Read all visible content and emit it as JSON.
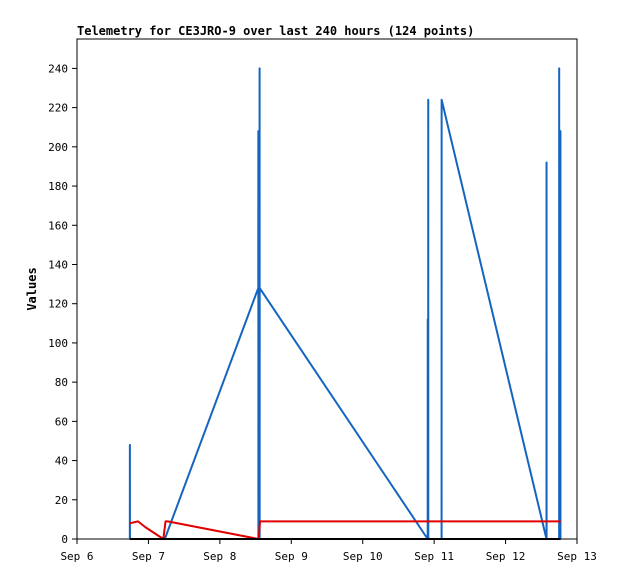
{
  "chart_data": {
    "type": "line",
    "title": "Telemetry for CE3JRO-9 over last 240 hours (124 points)",
    "xlabel": "",
    "ylabel": "Values",
    "ylim": [
      0,
      255
    ],
    "xlim": [
      "2023-09-06T00:00",
      "2023-09-13T00:00"
    ],
    "yticks": [
      0,
      20,
      40,
      60,
      80,
      100,
      120,
      140,
      160,
      180,
      200,
      220,
      240
    ],
    "xticks": [
      {
        "label": "Sep 6",
        "t": "2023-09-06T00:00"
      },
      {
        "label": "Sep 7",
        "t": "2023-09-07T00:00"
      },
      {
        "label": "Sep 8",
        "t": "2023-09-08T00:00"
      },
      {
        "label": "Sep 9",
        "t": "2023-09-09T00:00"
      },
      {
        "label": "Sep 10",
        "t": "2023-09-10T00:00"
      },
      {
        "label": "Sep 11",
        "t": "2023-09-11T00:00"
      },
      {
        "label": "Sep 12",
        "t": "2023-09-12T00:00"
      },
      {
        "label": "Sep 13",
        "t": "2023-09-13T00:00"
      }
    ],
    "grid": false,
    "series": [
      {
        "color": "#1565c0",
        "points": [
          [
            "2023-09-06T17:45",
            0
          ],
          [
            "2023-09-06T17:46",
            48
          ],
          [
            "2023-09-06T17:47",
            0
          ],
          [
            "2023-09-07T05:30",
            0
          ],
          [
            "2023-09-08T12:55",
            128
          ],
          [
            "2023-09-08T12:56",
            208
          ],
          [
            "2023-09-08T12:57",
            0
          ],
          [
            "2023-09-08T12:58",
            128
          ],
          [
            "2023-09-08T13:20",
            128
          ],
          [
            "2023-09-08T13:21",
            240
          ],
          [
            "2023-09-08T13:22",
            0
          ],
          [
            "2023-09-08T13:23",
            128
          ],
          [
            "2023-09-10T21:50",
            0
          ],
          [
            "2023-09-10T21:51",
            112
          ],
          [
            "2023-09-10T21:52",
            0
          ],
          [
            "2023-09-10T22:00",
            0
          ],
          [
            "2023-09-10T22:01",
            224
          ],
          [
            "2023-09-10T22:02",
            0
          ],
          [
            "2023-09-11T02:30",
            0
          ],
          [
            "2023-09-11T02:31",
            224
          ],
          [
            "2023-09-12T13:45",
            0
          ],
          [
            "2023-09-12T13:46",
            192
          ],
          [
            "2023-09-12T13:47",
            0
          ],
          [
            "2023-09-12T18:00",
            0
          ],
          [
            "2023-09-12T18:01",
            240
          ],
          [
            "2023-09-12T18:02",
            0
          ],
          [
            "2023-09-12T18:25",
            0
          ],
          [
            "2023-09-12T18:26",
            208
          ],
          [
            "2023-09-12T18:27",
            0
          ]
        ]
      },
      {
        "color": "#e00000",
        "points": [
          [
            "2023-09-06T17:45",
            8
          ],
          [
            "2023-09-06T20:30",
            9
          ],
          [
            "2023-09-06T23:00",
            6
          ],
          [
            "2023-09-07T05:00",
            0
          ],
          [
            "2023-09-07T05:45",
            9
          ],
          [
            "2023-09-07T06:30",
            9
          ],
          [
            "2023-09-08T13:00",
            0
          ],
          [
            "2023-09-08T13:30",
            9
          ],
          [
            "2023-09-12T18:30",
            9
          ]
        ]
      },
      {
        "color": "#000000",
        "points": [
          [
            "2023-09-06T17:45",
            0
          ],
          [
            "2023-09-12T18:30",
            0
          ]
        ]
      }
    ]
  }
}
